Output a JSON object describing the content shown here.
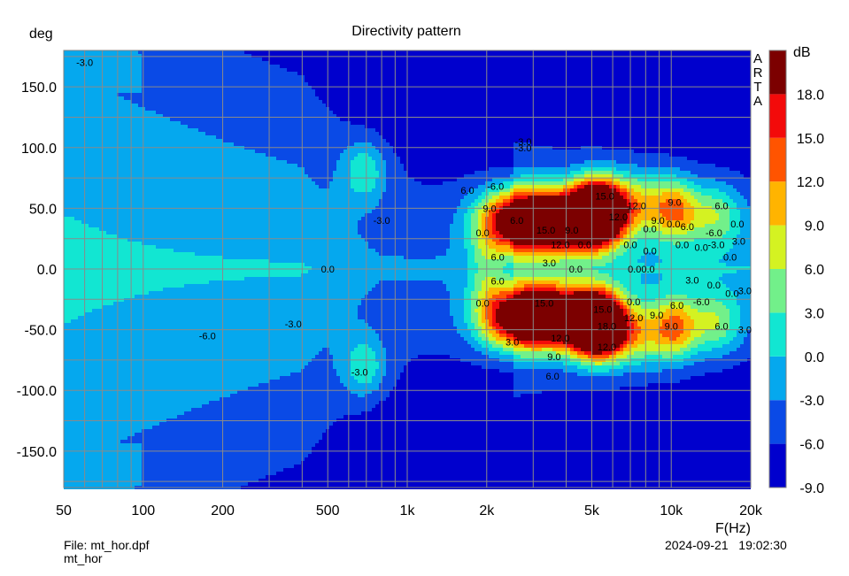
{
  "chart_data": {
    "type": "heatmap",
    "title": "Directivity pattern",
    "ylabel": "deg",
    "xlabel": "F(Hz)",
    "x_scale": "log",
    "xlim": [
      50,
      20000
    ],
    "ylim": [
      180,
      -180
    ],
    "x_ticks": [
      {
        "value": 50,
        "label": "50"
      },
      {
        "value": 100,
        "label": "100"
      },
      {
        "value": 200,
        "label": "200"
      },
      {
        "value": 500,
        "label": "500"
      },
      {
        "value": 1000,
        "label": "1k"
      },
      {
        "value": 2000,
        "label": "2k"
      },
      {
        "value": 5000,
        "label": "5k"
      },
      {
        "value": 10000,
        "label": "10k"
      },
      {
        "value": 20000,
        "label": "20k"
      }
    ],
    "y_ticks": [
      {
        "value": -150,
        "label": "-150.0"
      },
      {
        "value": -100,
        "label": "-100.0"
      },
      {
        "value": -50,
        "label": "-50.0"
      },
      {
        "value": 0,
        "label": "0.0"
      },
      {
        "value": 50,
        "label": "50.0"
      },
      {
        "value": 100,
        "label": "100.0"
      },
      {
        "value": 150,
        "label": "150.0"
      }
    ],
    "colorbar": {
      "unit": "dB",
      "range": [
        -9,
        21
      ],
      "labels": [
        "18.0",
        "15.0",
        "12.0",
        "9.0",
        "6.0",
        "3.0",
        "0.0",
        "-3.0",
        "-6.0",
        "-9.0"
      ],
      "levels": [
        {
          "min": -9,
          "max": -6,
          "color": "#0000cd"
        },
        {
          "min": -6,
          "max": -3,
          "color": "#0a4ae6"
        },
        {
          "min": -3,
          "max": 0,
          "color": "#05a8ee"
        },
        {
          "min": 0,
          "max": 3,
          "color": "#12e6d2"
        },
        {
          "min": 3,
          "max": 6,
          "color": "#72f08a"
        },
        {
          "min": 6,
          "max": 9,
          "color": "#d4f222"
        },
        {
          "min": 9,
          "max": 12,
          "color": "#ffb400"
        },
        {
          "min": 12,
          "max": 15,
          "color": "#ff5400"
        },
        {
          "min": 15,
          "max": 18,
          "color": "#f30a0a"
        },
        {
          "min": 18,
          "max": 21,
          "color": "#7c0000"
        }
      ]
    },
    "contour_labels": [
      {
        "f": 660,
        "deg": -85,
        "text": "-3.0"
      },
      {
        "f": 175,
        "deg": -55,
        "text": "-6.0"
      },
      {
        "f": 370,
        "deg": -45,
        "text": "-3.0"
      },
      {
        "f": 500,
        "deg": 0,
        "text": "0.0"
      },
      {
        "f": 800,
        "deg": 40,
        "text": "-3.0"
      },
      {
        "f": 1930,
        "deg": -28,
        "text": "0.0"
      },
      {
        "f": 2200,
        "deg": -10,
        "text": "6.0"
      },
      {
        "f": 2200,
        "deg": 10,
        "text": "6.0"
      },
      {
        "f": 1930,
        "deg": 30,
        "text": "0.0"
      },
      {
        "f": 2050,
        "deg": 50,
        "text": "9.0"
      },
      {
        "f": 1690,
        "deg": 65,
        "text": "6.0"
      },
      {
        "f": 2500,
        "deg": -60,
        "text": "3.0"
      },
      {
        "f": 3550,
        "deg": -88,
        "text": "6.0"
      },
      {
        "f": 3600,
        "deg": -72,
        "text": "9.0"
      },
      {
        "f": 3800,
        "deg": -57,
        "text": "12.0"
      },
      {
        "f": 3300,
        "deg": -28,
        "text": "15.0"
      },
      {
        "f": 3450,
        "deg": 5,
        "text": "3.0"
      },
      {
        "f": 4350,
        "deg": 0,
        "text": "0.0"
      },
      {
        "f": 3800,
        "deg": 20,
        "text": "12.0"
      },
      {
        "f": 3350,
        "deg": 32,
        "text": "15.0"
      },
      {
        "f": 2600,
        "deg": 40,
        "text": "6.0"
      },
      {
        "f": 4200,
        "deg": 32,
        "text": "9.0"
      },
      {
        "f": 4700,
        "deg": 20,
        "text": "0.0"
      },
      {
        "f": 2750,
        "deg": 100,
        "text": "-3.0"
      },
      {
        "f": 5700,
        "deg": -64,
        "text": "12.0"
      },
      {
        "f": 5700,
        "deg": -47,
        "text": "18.0"
      },
      {
        "f": 5500,
        "deg": -33,
        "text": "15.0"
      },
      {
        "f": 6300,
        "deg": 43,
        "text": "12.0"
      },
      {
        "f": 5600,
        "deg": 60,
        "text": "15.0"
      },
      {
        "f": 7000,
        "deg": 20,
        "text": "0.0"
      },
      {
        "f": 7200,
        "deg": -40,
        "text": "12.0"
      },
      {
        "f": 7200,
        "deg": -27,
        "text": "0.0"
      },
      {
        "f": 7700,
        "deg": 0,
        "text": "0.00.0"
      },
      {
        "f": 8300,
        "deg": 15,
        "text": "0.0"
      },
      {
        "f": 7400,
        "deg": 52,
        "text": "12.0"
      },
      {
        "f": 8300,
        "deg": 33,
        "text": "0.0"
      },
      {
        "f": 8800,
        "deg": -38,
        "text": "9.0"
      },
      {
        "f": 8900,
        "deg": 40,
        "text": "9.0"
      },
      {
        "f": 10000,
        "deg": -47,
        "text": "9.0"
      },
      {
        "f": 10500,
        "deg": -30,
        "text": "6.0"
      },
      {
        "f": 10200,
        "deg": 37,
        "text": "0.0"
      },
      {
        "f": 10300,
        "deg": 55,
        "text": "9.0"
      },
      {
        "f": 11000,
        "deg": 20,
        "text": "0.0"
      },
      {
        "f": 11500,
        "deg": 35,
        "text": "6.0"
      },
      {
        "f": 12000,
        "deg": -9,
        "text": "3.0"
      },
      {
        "f": 13000,
        "deg": -27,
        "text": "-6.0"
      },
      {
        "f": 14500,
        "deg": -13,
        "text": "0.0"
      },
      {
        "f": 13000,
        "deg": 18,
        "text": "0.0"
      },
      {
        "f": 14500,
        "deg": 30,
        "text": "-6.0"
      },
      {
        "f": 14800,
        "deg": 20,
        "text": "-3.0"
      },
      {
        "f": 15500,
        "deg": -47,
        "text": "6.0"
      },
      {
        "f": 17000,
        "deg": -20,
        "text": "0.0"
      },
      {
        "f": 16700,
        "deg": 10,
        "text": "0.0"
      },
      {
        "f": 15500,
        "deg": 52,
        "text": "6.0"
      },
      {
        "f": 19000,
        "deg": -50,
        "text": "3.0"
      },
      {
        "f": 19000,
        "deg": -18,
        "text": "3.0"
      },
      {
        "f": 18000,
        "deg": 23,
        "text": "3.0"
      },
      {
        "f": 17800,
        "deg": 37,
        "text": "0.0"
      },
      {
        "f": 2750,
        "deg": 105,
        "text": "-3.0"
      },
      {
        "f": 2160,
        "deg": 68,
        "text": "-6.0"
      },
      {
        "f": 60,
        "deg": 170,
        "text": "-3.0"
      }
    ],
    "side_label": [
      "A",
      "R",
      "T",
      "A"
    ]
  },
  "footer": {
    "file": "File: mt_hor.dpf",
    "name": "mt_hor",
    "datetime": "2024-09-21   19:02:30"
  }
}
